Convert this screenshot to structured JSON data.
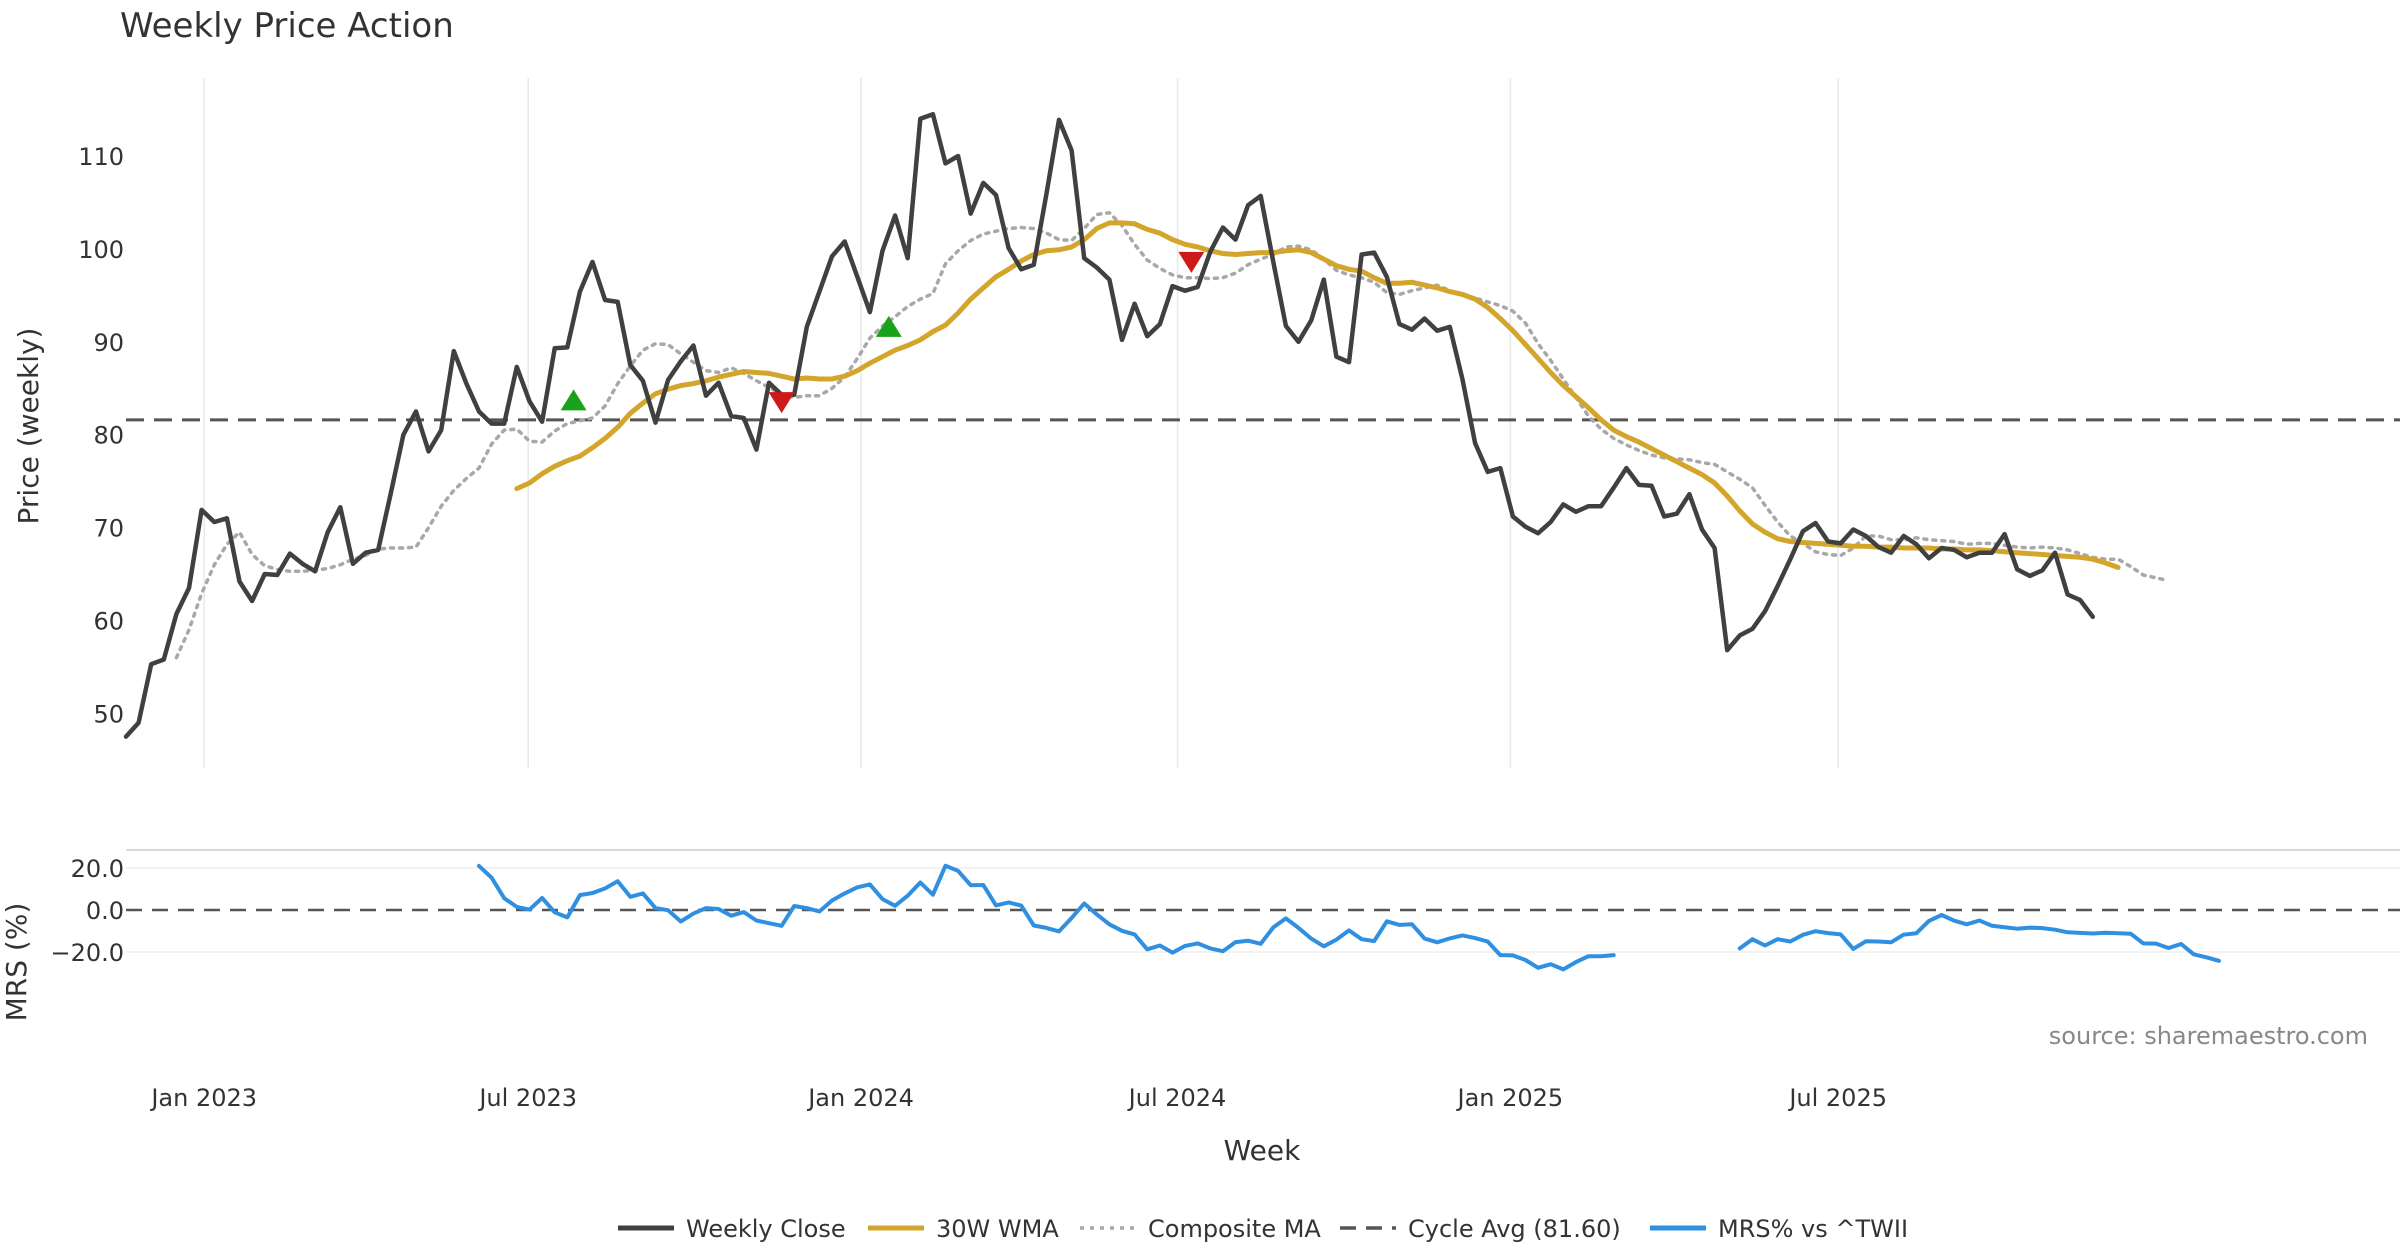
{
  "title": "Weekly Price Action",
  "colors": {
    "close": "#404040",
    "wma": "#d4a52b",
    "composite": "#a8a8a8",
    "cycle": "#555555",
    "mrs": "#2f8fe0",
    "buy": "#1aa31a",
    "sell": "#cc1a1a",
    "grid": "#e8e8e8",
    "text": "#333333",
    "source": "#888888"
  },
  "source_note": "source: sharemaestro.com",
  "legend": [
    {
      "key": "close",
      "label": "Weekly Close",
      "style": "solid"
    },
    {
      "key": "wma",
      "label": "30W WMA",
      "style": "solid"
    },
    {
      "key": "composite",
      "label": "Composite MA",
      "style": "dotted"
    },
    {
      "key": "cycle",
      "label": "Cycle Avg (81.60)",
      "style": "dashed"
    },
    {
      "key": "mrs",
      "label": "MRS% vs ^TWII",
      "style": "solid"
    }
  ],
  "chart_data": [
    {
      "type": "line",
      "title": "Weekly Price Action",
      "xlabel": "",
      "ylabel": "Price (weekly)",
      "x_ticks": [
        "Jan 2023",
        "Jul 2023",
        "Jan 2024",
        "Jul 2024",
        "Jan 2025",
        "Jul 2025"
      ],
      "y_ticks": [
        50,
        60,
        70,
        80,
        90,
        100,
        110
      ],
      "ylim": [
        44,
        119
      ],
      "xlim": [
        0,
        180
      ],
      "grid": "vertical",
      "cycle_avg": 81.6,
      "series": [
        {
          "name": "Weekly Close",
          "start": 0,
          "values": [
            47.5,
            49,
            55.3,
            55.8,
            60.7,
            63.5,
            71.9,
            70.6,
            71,
            64.2,
            62.1,
            65,
            64.9,
            67.2,
            66.1,
            65.3,
            69.5,
            72.2,
            66.1,
            67.3,
            67.6,
            73.7,
            80,
            82.5,
            78.2,
            80.5,
            89,
            85.5,
            82.5,
            81.2,
            81.2,
            87.3,
            83.6,
            81.4,
            89.3,
            89.4,
            95.4,
            98.6,
            94.5,
            94.3,
            87.5,
            85.8,
            81.3,
            85.9,
            87.9,
            89.6,
            84.2,
            85.6,
            82,
            81.8,
            78.4,
            85.6,
            84.3,
            84.3,
            91.6,
            95.4,
            99.2,
            100.8,
            97,
            93.2,
            99.8,
            103.6,
            99,
            114,
            114.5,
            109.2,
            110,
            103.8,
            107.1,
            105.8,
            100.1,
            97.8,
            98.3,
            105.9,
            113.9,
            110.6,
            99,
            98,
            96.7,
            90.2,
            94.1,
            90.6,
            91.9,
            96,
            95.5,
            95.9,
            99.7,
            102.3,
            101,
            104.7,
            105.7,
            98.6,
            91.7,
            90,
            92.3,
            96.7,
            88.4,
            87.8,
            99.4,
            99.6,
            97,
            91.9,
            91.3,
            92.5,
            91.2,
            91.6,
            86,
            79.1,
            76,
            76.4,
            71.2,
            70.1,
            69.4,
            70.6,
            72.5,
            71.7,
            72.3,
            72.3,
            74.3,
            76.4,
            74.6,
            74.5,
            71.2,
            71.5,
            73.6,
            69.8,
            67.8,
            56.8,
            58.4,
            59.1,
            61,
            63.7,
            66.6,
            69.6,
            70.5,
            68.5,
            68.3,
            69.8,
            69.1,
            67.9,
            67.3,
            69.1,
            68.2,
            66.7,
            67.8,
            67.6,
            66.8,
            67.3,
            67.3,
            69.3,
            65.5,
            64.8,
            65.4,
            67.3,
            62.8,
            62.2,
            60.4
          ]
        },
        {
          "name": "30W WMA",
          "start": 31,
          "values": [
            74.2,
            74.8,
            75.8,
            76.6,
            77.2,
            77.7,
            78.6,
            79.6,
            80.8,
            82.3,
            83.4,
            84.4,
            84.9,
            85.3,
            85.5,
            85.8,
            86.2,
            86.5,
            86.8,
            86.7,
            86.6,
            86.3,
            86,
            86.1,
            86,
            86,
            86.3,
            86.9,
            87.7,
            88.4,
            89.1,
            89.6,
            90.2,
            91.1,
            91.8,
            93.1,
            94.6,
            95.8,
            97,
            97.8,
            98.7,
            99.4,
            99.8,
            99.9,
            100.2,
            101,
            102.2,
            102.8,
            102.8,
            102.7,
            102.1,
            101.7,
            101,
            100.5,
            100.2,
            99.8,
            99.5,
            99.4,
            99.5,
            99.6,
            99.6,
            99.8,
            99.9,
            99.6,
            98.9,
            98.2,
            97.8,
            97.6,
            96.9,
            96.3,
            96.3,
            96.4,
            96.1,
            95.8,
            95.4,
            95.1,
            94.6,
            93.7,
            92.5,
            91.2,
            89.7,
            88.2,
            86.7,
            85.3,
            84.1,
            82.9,
            81.6,
            80.5,
            79.8,
            79.2,
            78.5,
            77.8,
            77.1,
            76.4,
            75.7,
            74.8,
            73.4,
            71.8,
            70.4,
            69.5,
            68.8,
            68.5,
            68.4,
            68.3,
            68.2,
            68.1,
            68,
            68,
            67.9,
            67.9,
            67.8,
            67.8,
            67.8,
            67.7,
            67.7,
            67.6,
            67.6,
            67.5,
            67.4,
            67.3,
            67.2,
            67.1,
            67,
            66.9,
            66.8,
            66.6,
            66.2,
            65.7
          ]
        },
        {
          "name": "Composite MA",
          "start": 4,
          "values": [
            56,
            59,
            62.9,
            66,
            68.2,
            69.5,
            67.1,
            65.9,
            65.5,
            65.3,
            65.3,
            65.4,
            65.6,
            66,
            66.6,
            67,
            67.7,
            67.8,
            67.8,
            67.9,
            70,
            72.3,
            74,
            75.3,
            76.4,
            79,
            80.5,
            80.6,
            79.3,
            79.2,
            80.4,
            81.2,
            81.5,
            81.8,
            83.1,
            85.5,
            87.4,
            89.1,
            89.8,
            89.7,
            88.7,
            87.8,
            86.9,
            86.7,
            87.2,
            86.6,
            85.8,
            85.1,
            84.3,
            84,
            84.2,
            84.2,
            85,
            86.2,
            88.2,
            90.4,
            91.7,
            92.7,
            93.8,
            94.6,
            95.2,
            98.4,
            99.8,
            100.9,
            101.6,
            101.9,
            102.2,
            102.3,
            102.2,
            101.7,
            101,
            100.9,
            102.2,
            103.7,
            103.9,
            102.5,
            100.5,
            98.8,
            97.9,
            97.2,
            96.9,
            96.9,
            96.8,
            96.9,
            97.4,
            98.3,
            98.9,
            99.4,
            100.2,
            100.3,
            99.9,
            98.9,
            97.7,
            97.2,
            96.9,
            96.4,
            95.3,
            95.1,
            95.5,
            95.8,
            96.1,
            95.5,
            95.1,
            94.7,
            94.3,
            93.9,
            93.3,
            92,
            89.8,
            88,
            86,
            84,
            82,
            80.6,
            79.6,
            78.9,
            78.3,
            77.8,
            77.5,
            77.4,
            77.3,
            77,
            76.8,
            76,
            75.2,
            74.3,
            72.4,
            70.6,
            69.1,
            68.3,
            67.4,
            67.1,
            67,
            67.8,
            69.1,
            69.1,
            68.7,
            68.7,
            68.9,
            68.7,
            68.6,
            68.5,
            68.2,
            68.3,
            68.3,
            68.1,
            67.9,
            67.8,
            67.9,
            67.8,
            67.6,
            67.2,
            66.8,
            66.6,
            66.6,
            65.8,
            64.9,
            64.6,
            64.3
          ]
        }
      ],
      "markers": [
        {
          "type": "buy",
          "x": 35.5,
          "y": 83.7
        },
        {
          "type": "buy",
          "x": 60.5,
          "y": 91.6
        },
        {
          "type": "sell",
          "x": 52,
          "y": 83.5
        },
        {
          "type": "sell",
          "x": 84.5,
          "y": 98.6
        }
      ]
    },
    {
      "type": "line",
      "xlabel": "Week",
      "ylabel": "MRS (%)",
      "x_ticks": [
        "Jan 2023",
        "Jul 2023",
        "Jan 2024",
        "Jul 2024",
        "Jan 2025",
        "Jul 2025"
      ],
      "y_ticks": [
        20.0,
        0.0,
        -20.0
      ],
      "y_tick_labels": [
        "20.0",
        "0.0",
        "−20.0"
      ],
      "ylim": [
        -29.5,
        24.5
      ],
      "xlim": [
        0,
        180
      ],
      "zero_line": 0,
      "series": [
        {
          "name": "MRS% vs ^TWII",
          "segments": [
            {
              "start": 28,
              "values": [
                21,
                15.4,
                5.6,
                1.5,
                0.2,
                5.7,
                -1.1,
                -3.5,
                7.1,
                8.1,
                10.3,
                13.7,
                6.3,
                7.9,
                0.9,
                -0.1,
                -5.5,
                -1.7,
                0.9,
                0.5,
                -2.7,
                -1,
                -5,
                -6.3,
                -7.5,
                1.9,
                0.9,
                -0.7,
                4.5,
                7.9,
                10.8,
                12.2,
                5.2,
                2,
                6.8,
                13.1,
                7.3,
                21.1,
                18.6,
                11.8,
                11.9,
                2.2,
                3.6,
                2.1,
                -7.4,
                -8.5,
                -10.2,
                -3.8,
                3.1,
                -2.1,
                -6.8,
                -9.9,
                -11.6,
                -18.7,
                -16.9,
                -20.3,
                -17.1,
                -15.9,
                -18.3,
                -19.6,
                -15.3,
                -14.6,
                -16.1,
                -8.3,
                -4,
                -8.5,
                -13.6,
                -17.3,
                -14.1,
                -9.7,
                -13.9,
                -14.8,
                -5.4,
                -7.1,
                -6.8,
                -13.6,
                -15.4,
                -13.5,
                -12.1,
                -13.4,
                -15,
                -21.5,
                -21.6,
                -23.8,
                -27.5,
                -25.8,
                -28.3,
                -24.8,
                -22,
                -22,
                -21.5
              ]
            },
            {
              "start": 128,
              "values": [
                -18.3,
                -13.9,
                -16.9,
                -13.9,
                -15,
                -11.8,
                -10.1,
                -11,
                -11.6,
                -18.5,
                -14.9,
                -15,
                -15.4,
                -11.7,
                -11.1,
                -5.2,
                -2.4,
                -5.1,
                -6.8,
                -5,
                -7.5,
                -8.2,
                -8.9,
                -8.4,
                -8.6,
                -9.4,
                -10.6,
                -10.9,
                -11.2,
                -10.8,
                -11.1,
                -11.3,
                -15.9,
                -16,
                -18.1,
                -16.2,
                -21.1,
                -22.5,
                -24.2
              ]
            }
          ]
        }
      ]
    }
  ]
}
